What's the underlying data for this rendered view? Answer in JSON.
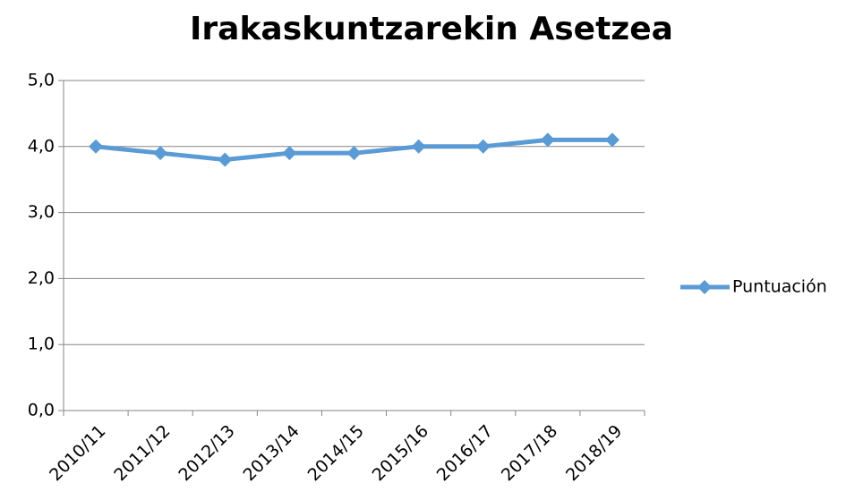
{
  "chart_data": {
    "type": "line",
    "title": "Irakaskuntzarekin Asetzea",
    "categories": [
      "2010/11",
      "2011/12",
      "2012/13",
      "2013/14",
      "2014/15",
      "2015/16",
      "2016/17",
      "2017/18",
      "2018/19"
    ],
    "series": [
      {
        "name": "Puntuación",
        "color": "#5b9bd5",
        "values": [
          4.0,
          3.9,
          3.8,
          3.9,
          3.9,
          4.0,
          4.0,
          4.1,
          4.1
        ]
      }
    ],
    "ylim": [
      0,
      5
    ],
    "yticks": [
      {
        "value": 0,
        "label": "0,0"
      },
      {
        "value": 1,
        "label": "1,0"
      },
      {
        "value": 2,
        "label": "2,0"
      },
      {
        "value": 3,
        "label": "3,0"
      },
      {
        "value": 4,
        "label": "4,0"
      },
      {
        "value": 5,
        "label": "5,0"
      }
    ],
    "grid": true,
    "legend": "right"
  }
}
